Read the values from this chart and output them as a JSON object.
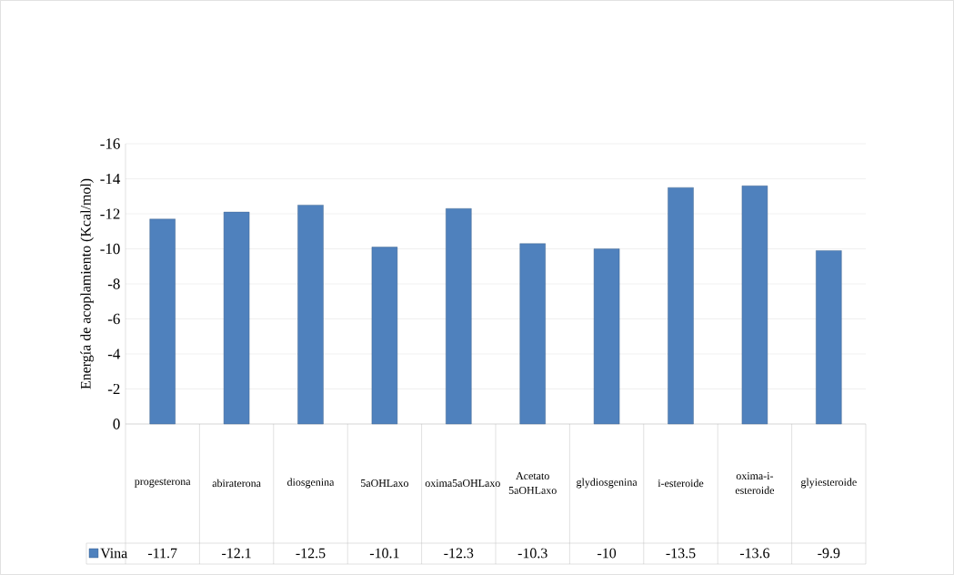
{
  "chart_data": {
    "type": "bar",
    "ylabel": "Energía de acoplamiento (Kcal/mol)",
    "categories": [
      "progesterona",
      "abiraterona",
      "diosgenina",
      "5aOHLaxo",
      "oxima5aOHLaxo",
      "Acetato 5aOHLaxo",
      "glydiosgenina",
      "i-esteroide",
      "oxima-i-esteroide",
      "glyiesteroide"
    ],
    "series": [
      {
        "name": "Vina",
        "color": "#4f81bd",
        "values": [
          -11.7,
          -12.1,
          -12.5,
          -10.1,
          -12.3,
          -10.3,
          -10,
          -13.5,
          -13.6,
          -9.9
        ]
      }
    ],
    "ylim": [
      0,
      -16
    ],
    "yticks": [
      0,
      -2,
      -4,
      -6,
      -8,
      -10,
      -12,
      -14,
      -16
    ],
    "grid": "y",
    "legend": "bottom",
    "data_labels": true
  }
}
